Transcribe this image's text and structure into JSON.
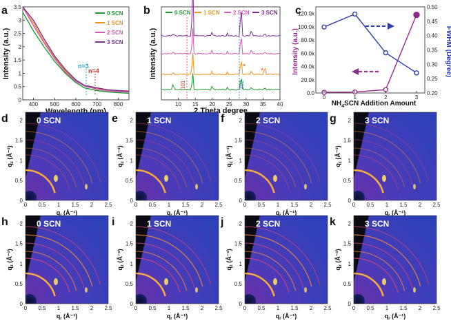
{
  "panels": {
    "a": "a",
    "b": "b",
    "c": "c",
    "d": "d",
    "e": "e",
    "f": "f",
    "g": "g",
    "h": "h",
    "i": "i",
    "j": "j",
    "k": "k"
  },
  "colors": {
    "s0": "#1e9a31",
    "s1": "#f0941c",
    "s2": "#d35bb5",
    "s3": "#7b2d90",
    "blue": "#2e3ea8",
    "purple": "#8e2a8c"
  },
  "chart_data": [
    {
      "type": "line",
      "title": "",
      "xlabel": "Wavelength (nm)",
      "ylabel": "Intensity (a.u.)",
      "xlim": [
        350,
        850
      ],
      "ylim": [
        0,
        3.5
      ],
      "xticks": [
        400,
        500,
        600,
        700,
        800
      ],
      "yticks": [
        0,
        0.5,
        1.0,
        1.5,
        2.0,
        2.5,
        3.0,
        3.5
      ],
      "legend": [
        "0 SCN",
        "1 SCN",
        "2 SCN",
        "3 SCN"
      ],
      "annotations": [
        "n=3",
        "n=4"
      ],
      "series": [
        {
          "name": "0 SCN",
          "x": [
            350,
            400,
            450,
            500,
            550,
            600,
            640,
            700,
            750,
            800,
            850
          ],
          "values": [
            3.3,
            2.6,
            2.0,
            1.45,
            1.0,
            0.65,
            0.45,
            0.35,
            0.3,
            0.27,
            0.25
          ]
        },
        {
          "name": "1 SCN",
          "x": [
            350,
            400,
            450,
            500,
            550,
            600,
            640,
            700,
            750,
            800,
            850
          ],
          "values": [
            3.45,
            2.9,
            2.2,
            1.6,
            1.1,
            0.72,
            0.52,
            0.42,
            0.36,
            0.33,
            0.3
          ]
        },
        {
          "name": "2 SCN",
          "x": [
            350,
            400,
            450,
            500,
            550,
            600,
            640,
            700,
            750,
            800,
            850
          ],
          "values": [
            3.5,
            2.8,
            2.15,
            1.55,
            1.05,
            0.7,
            0.52,
            0.4,
            0.34,
            0.31,
            0.29
          ]
        },
        {
          "name": "3 SCN",
          "x": [
            350,
            400,
            450,
            500,
            550,
            600,
            640,
            700,
            750,
            800,
            850
          ],
          "values": [
            3.5,
            3.0,
            2.3,
            1.65,
            1.15,
            0.75,
            0.55,
            0.45,
            0.38,
            0.35,
            0.33
          ]
        }
      ]
    },
    {
      "type": "line",
      "title": "",
      "xlabel": "2 Theta degree",
      "ylabel": "Intensity (a.u.)",
      "xlim": [
        5,
        40
      ],
      "xticks": [
        10,
        15,
        20,
        25,
        30,
        35,
        40
      ],
      "legend": [
        "0 SCN",
        "1 SCN",
        "2 SCN",
        "3 SCN"
      ],
      "peak_labels": [
        "101",
        "202"
      ],
      "marker_symbol": "*",
      "peaks_2theta": [
        14.2,
        28.5
      ]
    },
    {
      "type": "line",
      "title": "",
      "xlabel_prefix": "NH",
      "xlabel_sub": "4",
      "xlabel_suffix": "SCN Addition Amount",
      "ylabel": "Intensity (a.u.)",
      "y2label": "FWHM (Degree)",
      "xticks": [
        0,
        1,
        2,
        3
      ],
      "yticks": [
        "0.0",
        "20.0k",
        "40.0k",
        "60.0k",
        "80.0k",
        "100.0k",
        "120.0k"
      ],
      "y2ticks": [
        "0.20",
        "0.25",
        "0.30",
        "0.35",
        "0.40",
        "0.45",
        "0.50"
      ],
      "ylim": [
        0,
        130000
      ],
      "y2lim": [
        0.2,
        0.5
      ],
      "series": [
        {
          "name": "Intensity",
          "axis": "left",
          "x": [
            0,
            1,
            2,
            3
          ],
          "values": [
            1000,
            1500,
            5000,
            118000
          ]
        },
        {
          "name": "FWHM",
          "axis": "right",
          "x": [
            0,
            1,
            2,
            3
          ],
          "values": [
            0.43,
            0.475,
            0.34,
            0.27
          ]
        }
      ]
    }
  ],
  "giwaxs": {
    "ylabel_q": "q",
    "ylabel_sub": "z",
    "xlabel_q": "q",
    "xlabel_sub": "r",
    "unit": "(Å⁻¹)",
    "xticks": [
      "0",
      "0.5",
      "1",
      "1.5",
      "2",
      "2.5"
    ],
    "yticks": [
      "0",
      "0.5",
      "1",
      "1.5",
      "2"
    ],
    "row1": [
      "0 SCN",
      "1 SCN",
      "2 SCN",
      "3 SCN"
    ],
    "row2": [
      "0 SCN",
      "1 SCN",
      "2 SCN",
      "3 SCN"
    ]
  }
}
